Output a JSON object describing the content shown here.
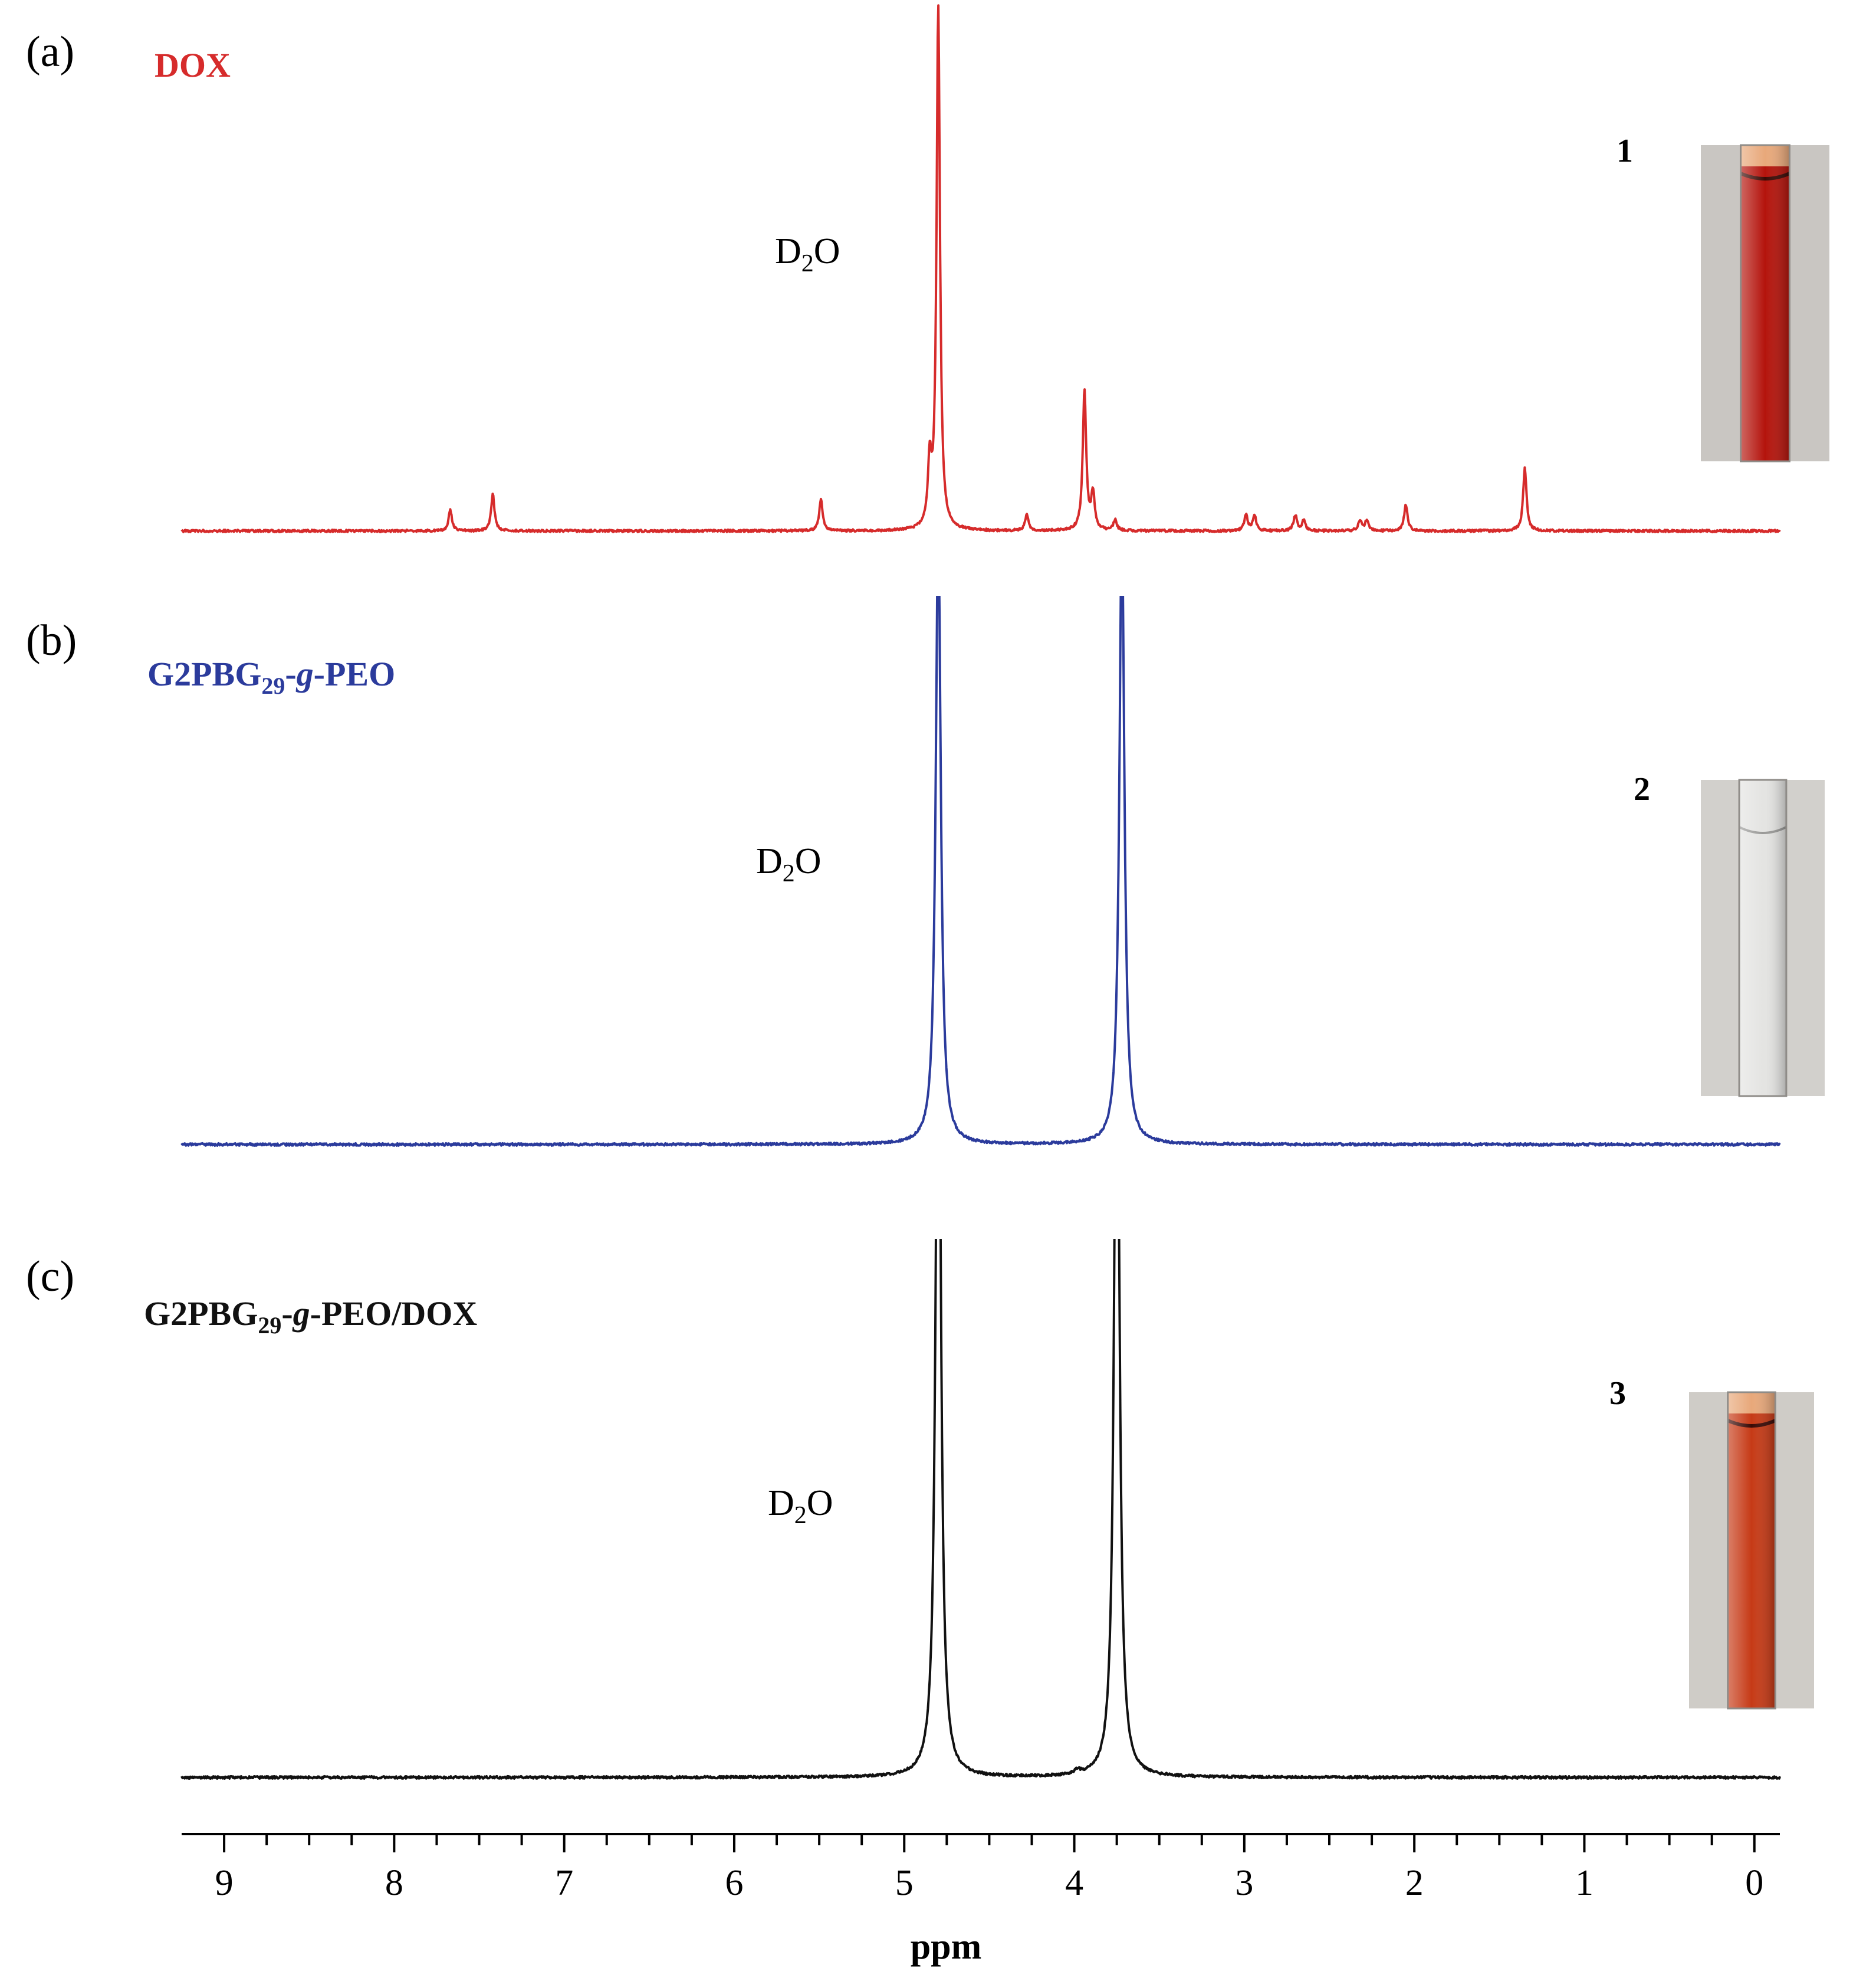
{
  "chart_data": {
    "type": "line",
    "xlabel": "ppm",
    "xlim": [
      9.25,
      -0.15
    ],
    "x_ticks": [
      9,
      8,
      7,
      6,
      5,
      4,
      3,
      2,
      1,
      0
    ],
    "grid": false,
    "panels": [
      {
        "label": "(a)",
        "title": "DOX",
        "color": "#d62b2b",
        "annotation": {
          "main": "D",
          "sub": "2",
          "tail": "O"
        },
        "tube_number": "1",
        "tube_color": "#b4140c",
        "peaks": [
          {
            "ppm": 7.67,
            "height": 0.04
          },
          {
            "ppm": 7.42,
            "height": 0.07
          },
          {
            "ppm": 5.49,
            "height": 0.06
          },
          {
            "ppm": 4.85,
            "height": 0.12
          },
          {
            "ppm": 4.8,
            "height": 1.0
          },
          {
            "ppm": 4.28,
            "height": 0.03
          },
          {
            "ppm": 3.94,
            "height": 0.27
          },
          {
            "ppm": 3.89,
            "height": 0.07
          },
          {
            "ppm": 3.76,
            "height": 0.02
          },
          {
            "ppm": 2.99,
            "height": 0.03
          },
          {
            "ppm": 2.94,
            "height": 0.03
          },
          {
            "ppm": 2.7,
            "height": 0.03
          },
          {
            "ppm": 2.65,
            "height": 0.02
          },
          {
            "ppm": 2.32,
            "height": 0.02
          },
          {
            "ppm": 2.28,
            "height": 0.02
          },
          {
            "ppm": 2.05,
            "height": 0.05
          },
          {
            "ppm": 1.35,
            "height": 0.12
          }
        ]
      },
      {
        "label": "(b)",
        "title": "G2PBG",
        "title_sub": "29",
        "title_mid": "-",
        "title_italic": "g",
        "title_tail": "-PEO",
        "color": "#2b3b9c",
        "annotation": {
          "main": "D",
          "sub": "2",
          "tail": "O"
        },
        "tube_number": "2",
        "tube_color": "#d8d8d6",
        "peaks": [
          {
            "ppm": 4.8,
            "height": 1.0
          },
          {
            "ppm": 3.72,
            "height": 1.0
          }
        ]
      },
      {
        "label": "(c)",
        "title": "G2PBG",
        "title_sub": "29",
        "title_mid": "-",
        "title_italic": "g",
        "title_tail": "-PEO/DOX",
        "color": "#111111",
        "annotation": {
          "main": "D",
          "sub": "2",
          "tail": "O"
        },
        "tube_number": "3",
        "tube_color": "#c63a16",
        "peaks": [
          {
            "ppm": 4.8,
            "height": 1.0
          },
          {
            "ppm": 3.98,
            "height": 0.005
          },
          {
            "ppm": 3.75,
            "height": 1.0
          }
        ]
      }
    ]
  }
}
